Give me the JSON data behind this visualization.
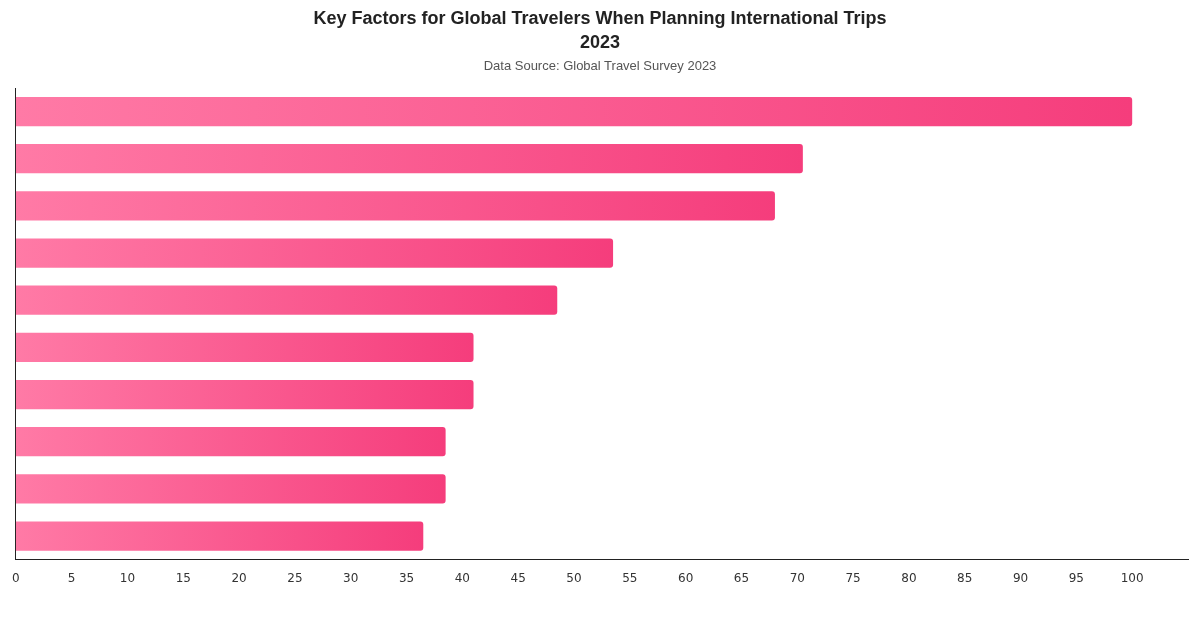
{
  "chart_data": {
    "type": "bar",
    "orientation": "horizontal",
    "title": "Key Factors for Global Travelers When Planning International Trips 2023",
    "subtitle": "Data Source: Global Travel Survey 2023",
    "categories": [
      null,
      null,
      null,
      null,
      null,
      null,
      null,
      null,
      null,
      null
    ],
    "values": [
      100,
      70.5,
      68,
      53.5,
      48.5,
      41,
      41,
      38.5,
      38.5,
      36.5
    ],
    "color": "#f53d7c",
    "xlim": [
      0,
      105
    ],
    "xticks": [
      0,
      5,
      10,
      15,
      20,
      25,
      30,
      35,
      40,
      45,
      50,
      55,
      60,
      65,
      70,
      75,
      80,
      85,
      90,
      95,
      100
    ],
    "grid": false,
    "legend": false
  }
}
